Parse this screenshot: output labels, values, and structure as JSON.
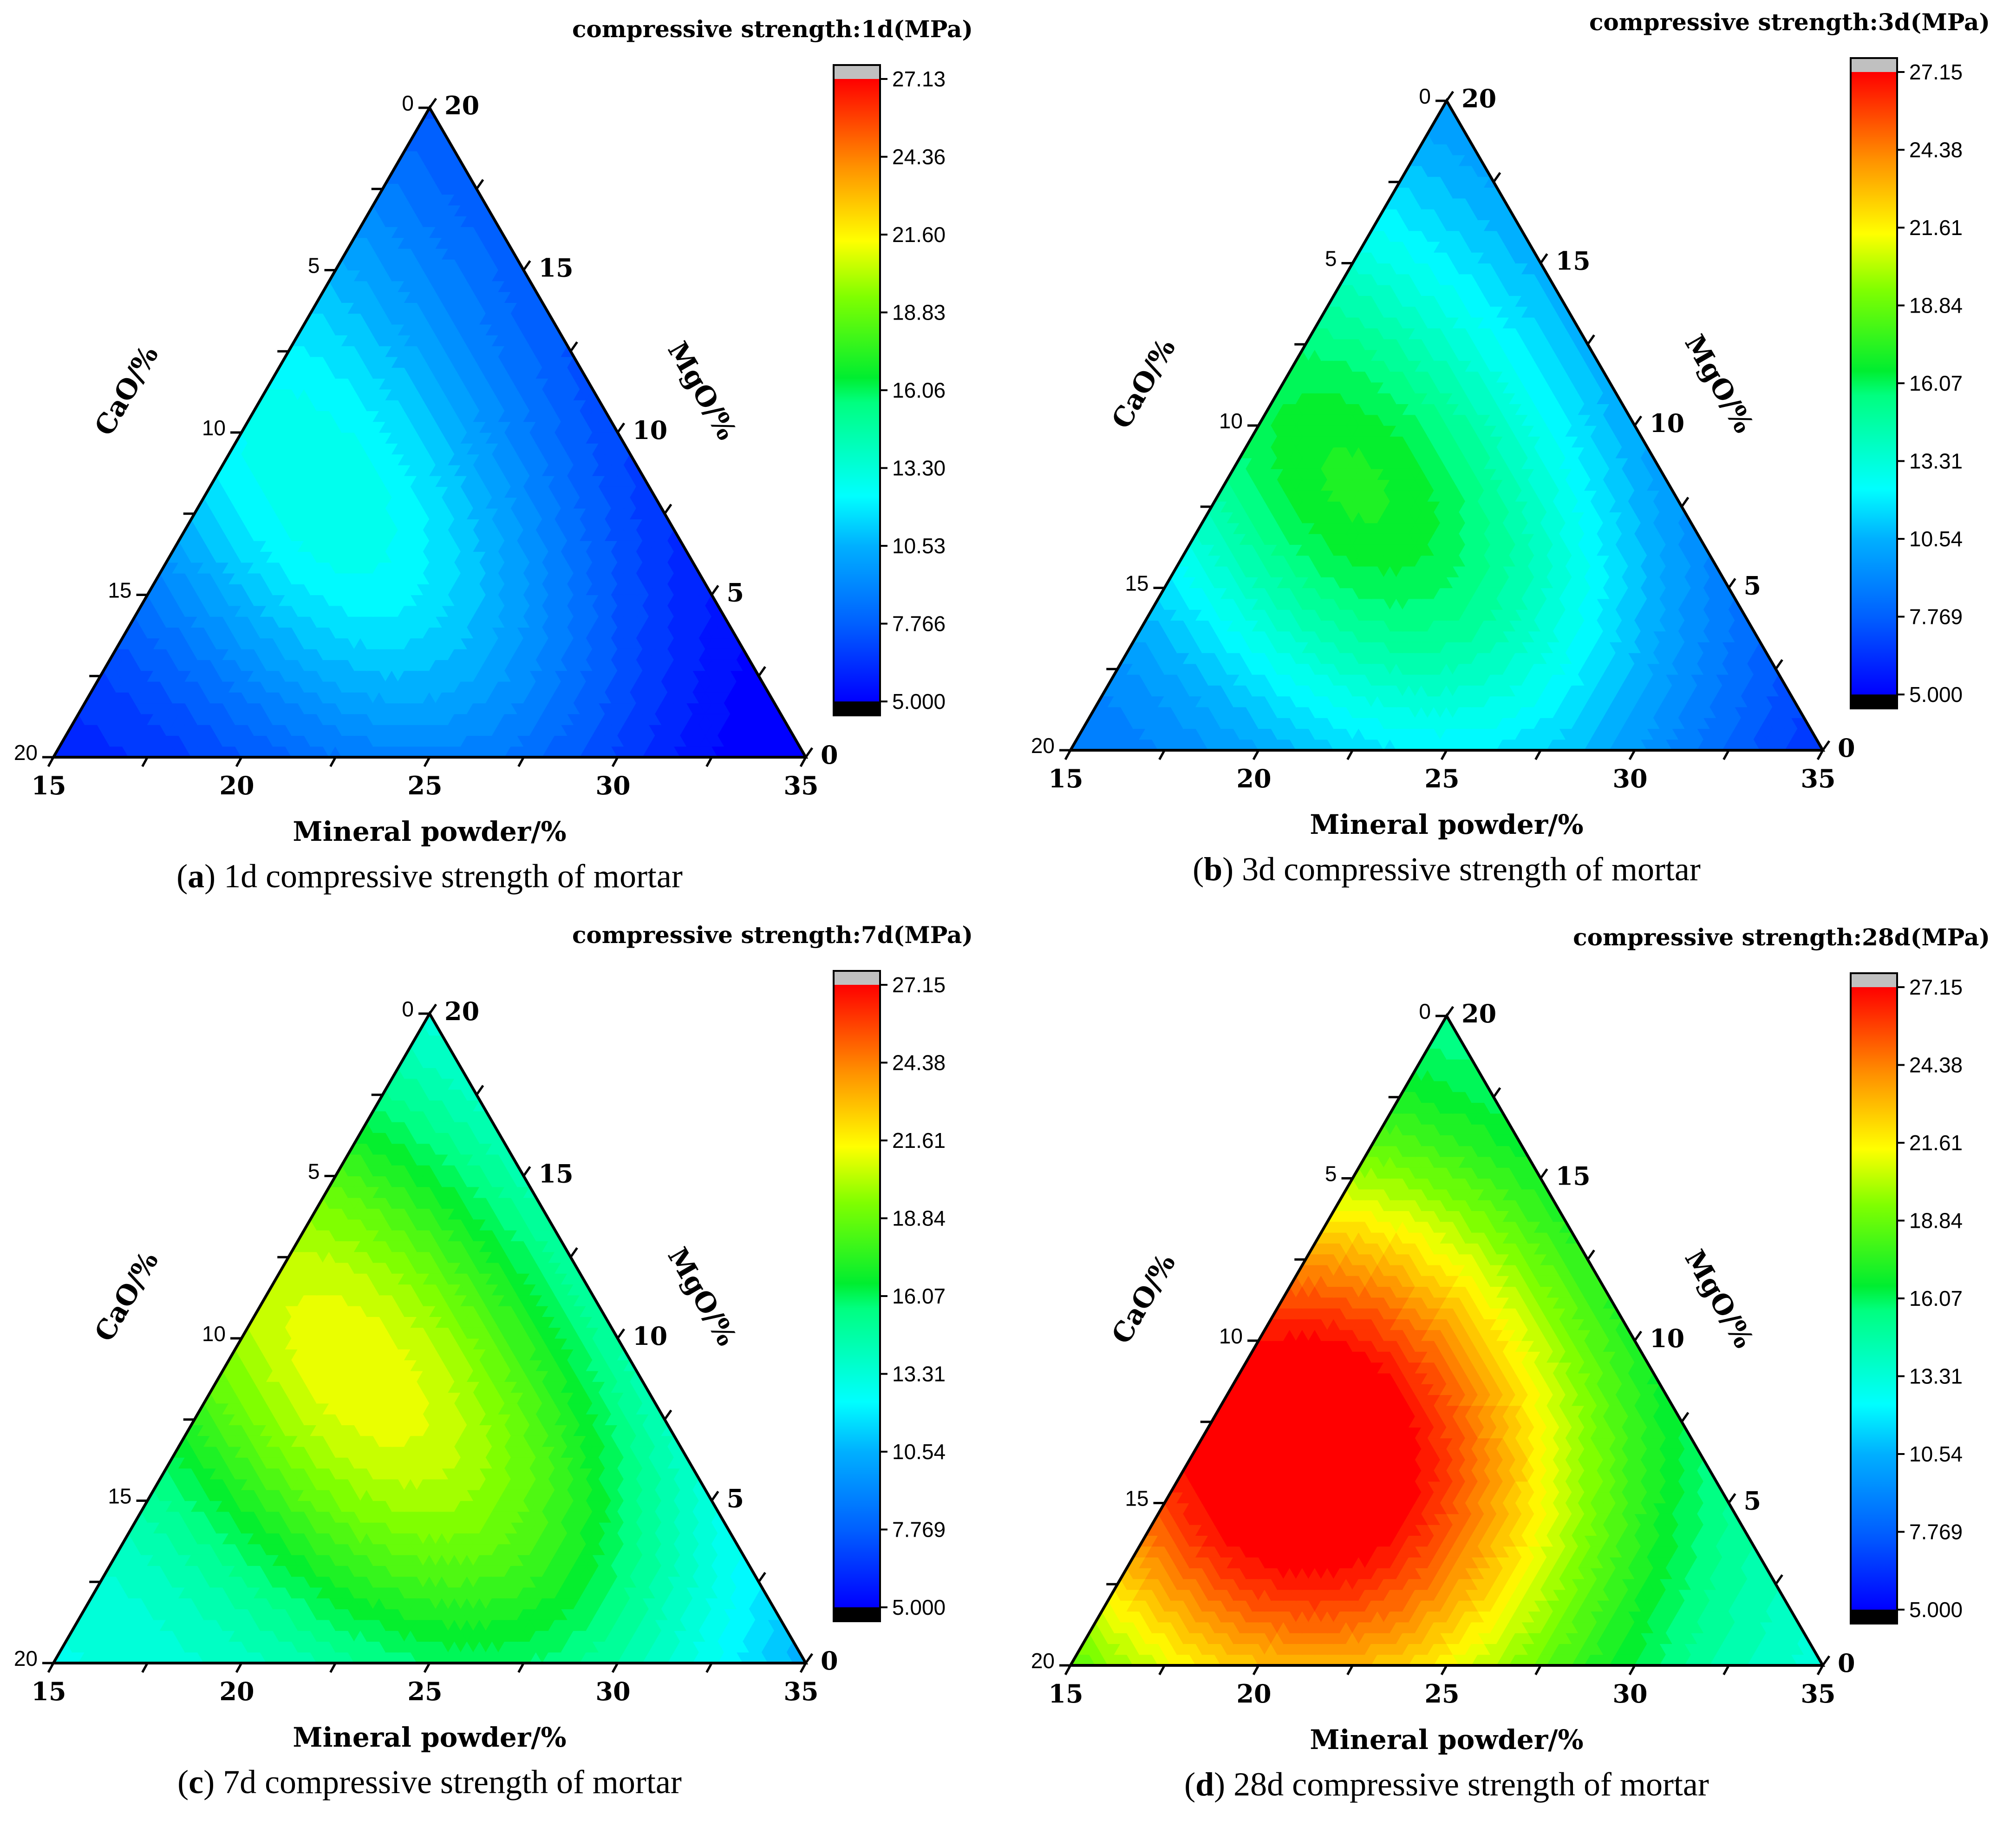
{
  "chart_data": [
    {
      "type": "ternary-contour",
      "panel_label": "a",
      "caption": "1d compressive strength of mortar",
      "colorbar_title": "compressive strength:1d(MPa)",
      "colorbar_ticks": [
        "27.13",
        "24.36",
        "21.60",
        "18.83",
        "16.06",
        "13.30",
        "10.53",
        "7.766",
        "5.000"
      ],
      "colorbar_range": [
        5.0,
        27.13
      ],
      "axes": {
        "bottom": {
          "label": "Mineral powder/%",
          "ticks": [
            "15",
            "20",
            "25",
            "30",
            "35"
          ],
          "range": [
            15,
            35
          ]
        },
        "left": {
          "label": "CaO/%",
          "ticks": [
            "0",
            "5",
            "10",
            "15",
            "20"
          ],
          "range": [
            0,
            20
          ]
        },
        "right": {
          "label": "MgO/%",
          "ticks": [
            "20",
            "15",
            "10",
            "5",
            "0"
          ],
          "range": [
            0,
            20
          ]
        }
      },
      "field": {
        "kind": "1d",
        "peak_region": "upper-left interior (~12 MPa)",
        "range_mpa": [
          5.5,
          12.5
        ]
      }
    },
    {
      "type": "ternary-contour",
      "panel_label": "b",
      "caption": "3d compressive strength of mortar",
      "colorbar_title": "compressive strength:3d(MPa)",
      "colorbar_ticks": [
        "27.15",
        "24.38",
        "21.61",
        "18.84",
        "16.07",
        "13.31",
        "10.54",
        "7.769",
        "5.000"
      ],
      "colorbar_range": [
        5.0,
        27.15
      ],
      "axes": {
        "bottom": {
          "label": "Mineral powder/%",
          "ticks": [
            "15",
            "20",
            "25",
            "30",
            "35"
          ],
          "range": [
            15,
            35
          ]
        },
        "left": {
          "label": "CaO/%",
          "ticks": [
            "0",
            "5",
            "10",
            "15",
            "20"
          ],
          "range": [
            0,
            20
          ]
        },
        "right": {
          "label": "MgO/%",
          "ticks": [
            "20",
            "15",
            "10",
            "5",
            "0"
          ],
          "range": [
            0,
            20
          ]
        }
      },
      "field": {
        "kind": "3d",
        "peak_region": "upper-left interior (~16 MPa)",
        "range_mpa": [
          7.5,
          16.5
        ]
      }
    },
    {
      "type": "ternary-contour",
      "panel_label": "c",
      "caption": "7d compressive strength of mortar",
      "colorbar_title": "compressive strength:7d(MPa)",
      "colorbar_ticks": [
        "27.15",
        "24.38",
        "21.61",
        "18.84",
        "16.07",
        "13.31",
        "10.54",
        "7.769",
        "5.000"
      ],
      "colorbar_range": [
        5.0,
        27.15
      ],
      "axes": {
        "bottom": {
          "label": "Mineral powder/%",
          "ticks": [
            "15",
            "20",
            "25",
            "30",
            "35"
          ],
          "range": [
            15,
            35
          ]
        },
        "left": {
          "label": "CaO/%",
          "ticks": [
            "0",
            "5",
            "10",
            "15",
            "20"
          ],
          "range": [
            0,
            20
          ]
        },
        "right": {
          "label": "MgO/%",
          "ticks": [
            "20",
            "15",
            "10",
            "5",
            "0"
          ],
          "range": [
            0,
            20
          ]
        }
      },
      "field": {
        "kind": "7d",
        "peak_region": "upper-left interior (~20 MPa)",
        "range_mpa": [
          11.5,
          20.5
        ]
      }
    },
    {
      "type": "ternary-contour",
      "panel_label": "d",
      "caption": "28d compressive strength of mortar",
      "colorbar_title": "compressive strength:28d(MPa)",
      "colorbar_ticks": [
        "27.15",
        "24.38",
        "21.61",
        "18.84",
        "16.07",
        "13.31",
        "10.54",
        "7.769",
        "5.000"
      ],
      "colorbar_range": [
        5.0,
        27.15
      ],
      "axes": {
        "bottom": {
          "label": "Mineral powder/%",
          "ticks": [
            "15",
            "20",
            "25",
            "30",
            "35"
          ],
          "range": [
            15,
            35
          ]
        },
        "left": {
          "label": "CaO/%",
          "ticks": [
            "0",
            "5",
            "10",
            "15",
            "20"
          ],
          "range": [
            0,
            20
          ]
        },
        "right": {
          "label": "MgO/%",
          "ticks": [
            "20",
            "15",
            "10",
            "5",
            "0"
          ],
          "range": [
            0,
            20
          ]
        }
      },
      "field": {
        "kind": "28d",
        "peak_region": "upper-left along CaO edge (~27 MPa)",
        "range_mpa": [
          15.5,
          27.0
        ]
      }
    }
  ]
}
